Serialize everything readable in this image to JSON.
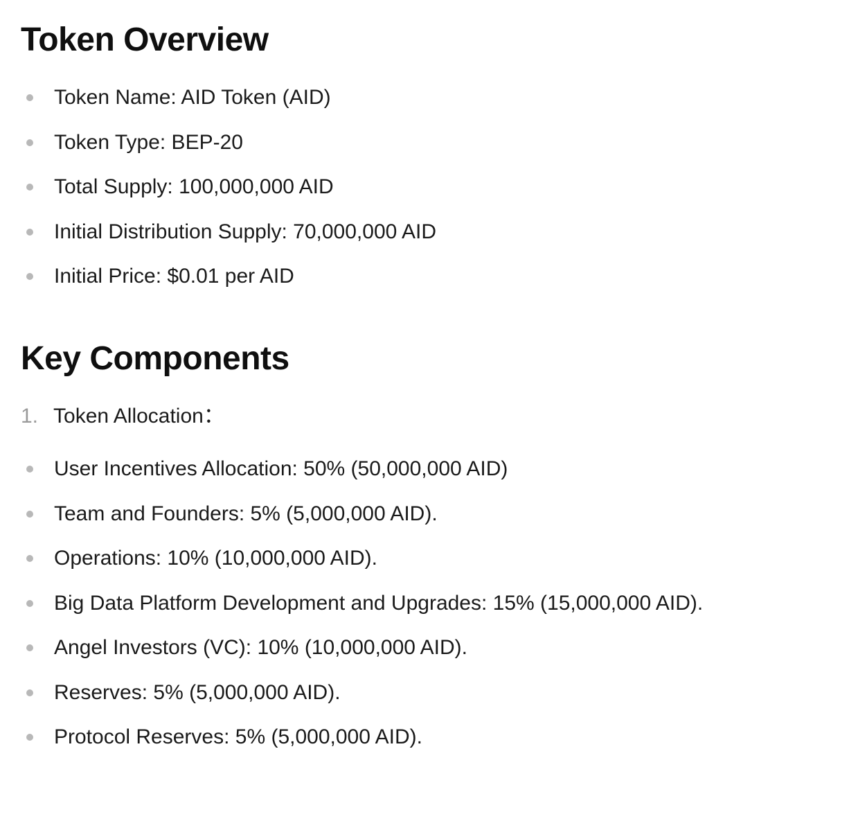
{
  "sections": {
    "overview": {
      "heading": "Token Overview",
      "items": [
        "Token Name: AID Token (AID)",
        "Token Type: BEP-20",
        "Total Supply: 100,000,000 AID",
        "Initial Distribution Supply: 70,000,000 AID",
        "Initial Price: $0.01 per AID"
      ]
    },
    "components": {
      "heading": "Key Components",
      "numbered": {
        "num": "1.",
        "label": "Token Allocation："
      },
      "allocation_items": [
        "User Incentives Allocation: 50% (50,000,000 AID)",
        "Team and Founders: 5% (5,000,000 AID).",
        "Operations: 10% (10,000,000 AID).",
        "Big Data Platform Development and Upgrades: 15% (15,000,000 AID).",
        "Angel Investors (VC): 10% (10,000,000 AID).",
        "Reserves: 5% (5,000,000 AID).",
        "Protocol Reserves: 5% (5,000,000 AID)."
      ]
    }
  },
  "styles": {
    "heading_color": "#0f0f0f",
    "text_color": "#1a1a1a",
    "bullet_color": "#b8b8b8",
    "number_color": "#9a9a9a",
    "background_color": "#ffffff",
    "heading_fontsize": 48,
    "body_fontsize": 30
  }
}
